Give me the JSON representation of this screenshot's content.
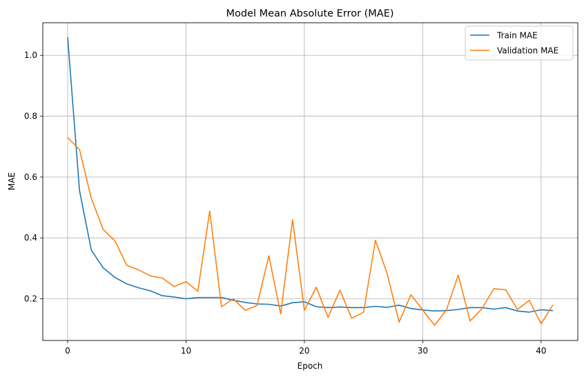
{
  "chart_data": {
    "type": "line",
    "title": "Model Mean Absolute Error (MAE)",
    "xlabel": "Epoch",
    "ylabel": "MAE",
    "xlim": [
      -2.1,
      43.1
    ],
    "ylim": [
      0.063,
      1.107
    ],
    "xticks": [
      0,
      10,
      20,
      30,
      40
    ],
    "yticks": [
      0.2,
      0.4,
      0.6,
      0.8,
      1.0
    ],
    "ytick_labels": [
      "0.2",
      "0.4",
      "0.6",
      "0.8",
      "1.0"
    ],
    "grid": true,
    "legend_position": "top-right",
    "x": [
      0,
      1,
      2,
      3,
      4,
      5,
      6,
      7,
      8,
      9,
      10,
      11,
      12,
      13,
      14,
      15,
      16,
      17,
      18,
      19,
      20,
      21,
      22,
      23,
      24,
      25,
      26,
      27,
      28,
      29,
      30,
      31,
      32,
      33,
      34,
      35,
      36,
      37,
      38,
      39,
      40,
      41
    ],
    "series": [
      {
        "name": "Train MAE",
        "color": "#1f77b4",
        "values": [
          1.06,
          0.555,
          0.36,
          0.302,
          0.27,
          0.249,
          0.236,
          0.226,
          0.21,
          0.206,
          0.2,
          0.204,
          0.204,
          0.204,
          0.195,
          0.188,
          0.183,
          0.182,
          0.176,
          0.187,
          0.19,
          0.174,
          0.171,
          0.173,
          0.171,
          0.171,
          0.175,
          0.172,
          0.179,
          0.168,
          0.163,
          0.16,
          0.161,
          0.165,
          0.171,
          0.171,
          0.166,
          0.171,
          0.16,
          0.156,
          0.164,
          0.161
        ]
      },
      {
        "name": "Validation MAE",
        "color": "#ff7f0e",
        "values": [
          0.73,
          0.69,
          0.53,
          0.428,
          0.39,
          0.31,
          0.295,
          0.275,
          0.268,
          0.24,
          0.256,
          0.225,
          0.488,
          0.174,
          0.2,
          0.162,
          0.178,
          0.341,
          0.15,
          0.46,
          0.162,
          0.238,
          0.139,
          0.228,
          0.136,
          0.156,
          0.392,
          0.283,
          0.123,
          0.213,
          0.163,
          0.113,
          0.163,
          0.278,
          0.127,
          0.167,
          0.233,
          0.23,
          0.165,
          0.195,
          0.118,
          0.18
        ]
      }
    ]
  }
}
